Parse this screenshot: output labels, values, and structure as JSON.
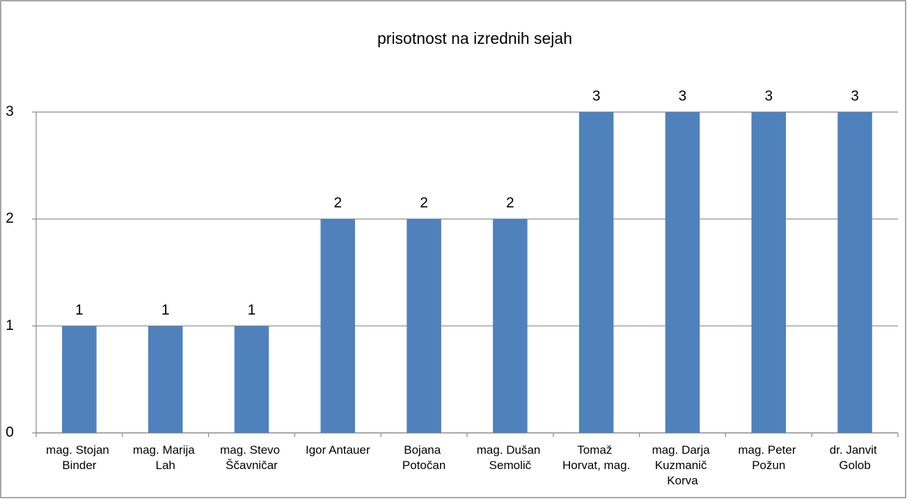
{
  "chart_data": {
    "type": "bar",
    "title": "prisotnost na izrednih sejah",
    "categories": [
      "mag. Stojan Binder",
      "mag. Marija Lah",
      "mag. Stevo Ščavničar",
      "Igor Antauer",
      "Bojana Potočan",
      "mag. Dušan Semolič",
      "Tomaž Horvat, mag.",
      "mag. Darja Kuzmanič Korva",
      "mag. Peter Požun",
      "dr. Janvit Golob"
    ],
    "values": [
      1,
      1,
      1,
      2,
      2,
      2,
      3,
      3,
      3,
      3
    ],
    "color": "#4f81bd",
    "ylim": [
      0,
      3
    ],
    "yticks": [
      0,
      1,
      2,
      3
    ],
    "grid": true
  }
}
